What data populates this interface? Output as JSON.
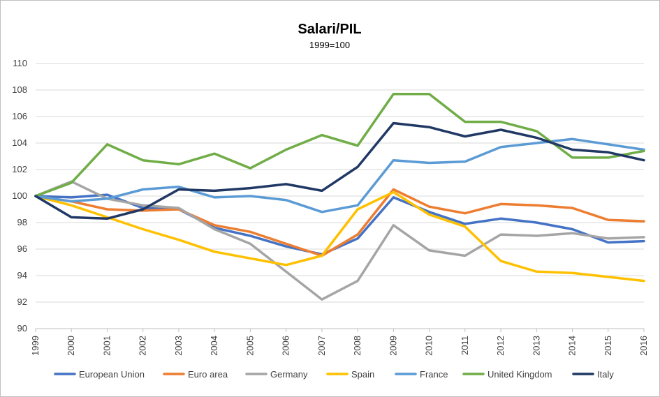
{
  "chart_data": {
    "type": "line",
    "title": "Salari/PIL",
    "subtitle": "1999=100",
    "xlabel": "",
    "ylabel": "",
    "x": [
      "1999",
      "2000",
      "2001",
      "2002",
      "2003",
      "2004",
      "2005",
      "2006",
      "2007",
      "2008",
      "2009",
      "2010",
      "2011",
      "2012",
      "2013",
      "2014",
      "2015",
      "2016"
    ],
    "ylim": [
      90,
      110
    ],
    "yticks": [
      90,
      92,
      94,
      96,
      98,
      100,
      102,
      104,
      106,
      108,
      110
    ],
    "grid": "horizontal",
    "legend_position": "bottom",
    "series": [
      {
        "name": "European Union",
        "color": "#4472c4",
        "values": [
          100,
          99.9,
          100.1,
          99.1,
          99.0,
          97.6,
          97.0,
          96.2,
          95.6,
          96.8,
          99.9,
          98.8,
          97.9,
          98.3,
          98.0,
          97.5,
          96.5,
          96.6
        ]
      },
      {
        "name": "Euro area",
        "color": "#ed7d31",
        "values": [
          100,
          99.6,
          99.0,
          98.9,
          99.0,
          97.8,
          97.3,
          96.4,
          95.5,
          97.1,
          100.5,
          99.2,
          98.7,
          99.4,
          99.3,
          99.1,
          98.2,
          98.1
        ]
      },
      {
        "name": "Germany",
        "color": "#a5a5a5",
        "values": [
          100,
          101.1,
          99.8,
          99.3,
          99.1,
          97.5,
          96.4,
          94.3,
          92.2,
          93.6,
          97.8,
          95.9,
          95.5,
          97.1,
          97.0,
          97.2,
          96.8,
          96.9
        ]
      },
      {
        "name": "Spain",
        "color": "#ffc000",
        "values": [
          100,
          99.3,
          98.4,
          97.5,
          96.7,
          95.8,
          95.3,
          94.8,
          95.5,
          99.0,
          100.3,
          98.6,
          97.7,
          95.1,
          94.3,
          94.2,
          93.9,
          93.6
        ]
      },
      {
        "name": "France",
        "color": "#5b9bd5",
        "values": [
          100,
          99.6,
          99.8,
          100.5,
          100.7,
          99.9,
          100.0,
          99.7,
          98.8,
          99.3,
          102.7,
          102.5,
          102.6,
          103.7,
          104.0,
          104.3,
          103.9,
          103.5
        ]
      },
      {
        "name": "United Kingdom",
        "color": "#70ad47",
        "values": [
          100,
          101.0,
          103.9,
          102.7,
          102.4,
          103.2,
          102.1,
          103.5,
          104.6,
          103.8,
          107.7,
          107.7,
          105.6,
          105.6,
          104.9,
          102.9,
          102.9,
          103.4
        ]
      },
      {
        "name": "Italy",
        "color": "#203864",
        "values": [
          100,
          98.4,
          98.3,
          99.0,
          100.5,
          100.4,
          100.6,
          100.9,
          100.4,
          102.2,
          105.5,
          105.2,
          104.5,
          105.0,
          104.4,
          103.5,
          103.3,
          102.7
        ]
      }
    ]
  }
}
